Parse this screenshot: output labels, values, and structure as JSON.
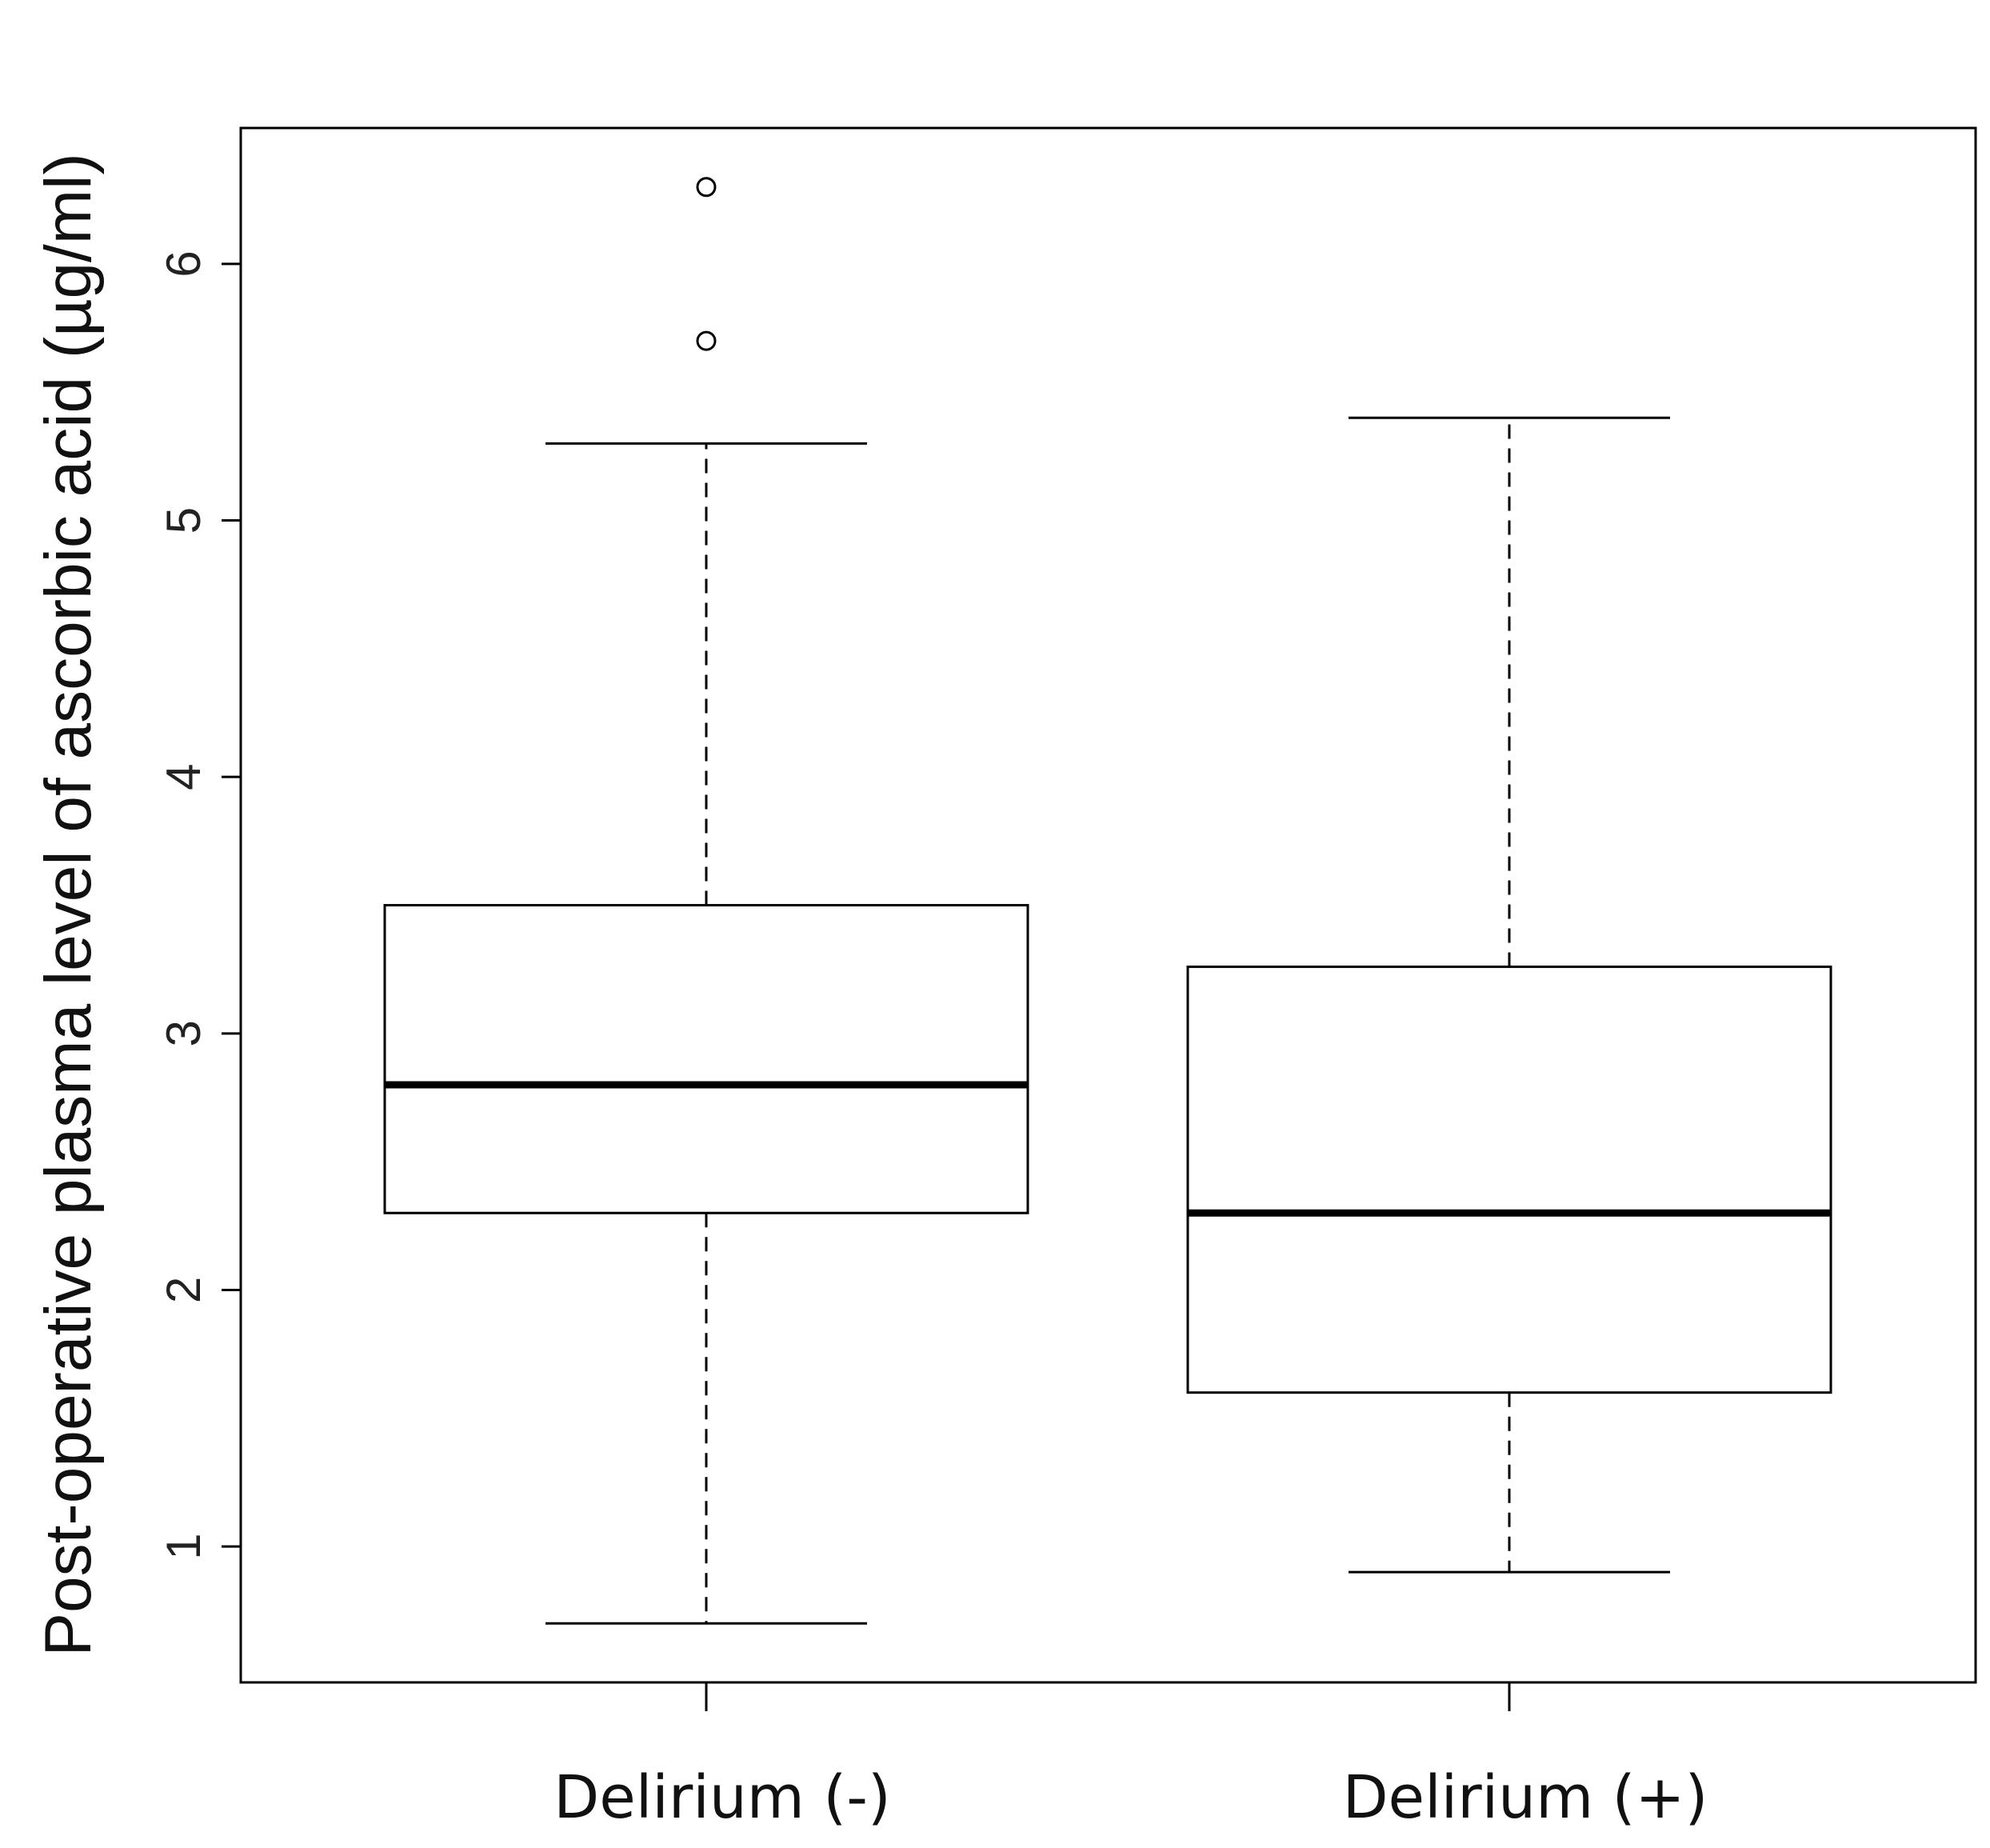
{
  "chart_data": {
    "type": "box",
    "ylabel": "Post-operative plasma level of ascorbic acid (µg/ml)",
    "xlabel": "",
    "title": "",
    "ylim": [
      0.47,
      6.53
    ],
    "yticks": [
      1,
      2,
      3,
      4,
      5,
      6
    ],
    "grid": false,
    "categories": [
      "Delirium (-)",
      "Delirium (+)"
    ],
    "boxes": [
      {
        "category": "Delirium (-)",
        "whisker_low": 0.7,
        "q1": 2.3,
        "median": 2.8,
        "q3": 3.5,
        "whisker_high": 5.3,
        "outliers": [
          5.7,
          6.3
        ]
      },
      {
        "category": "Delirium (+)",
        "whisker_low": 0.9,
        "q1": 1.6,
        "median": 2.3,
        "q3": 3.26,
        "whisker_high": 5.4,
        "outliers": []
      }
    ]
  }
}
